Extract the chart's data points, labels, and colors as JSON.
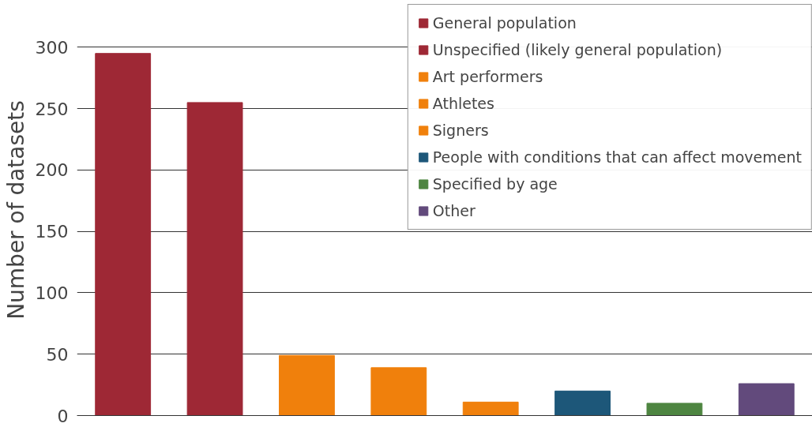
{
  "chart_data": {
    "type": "bar",
    "ylabel": "Number of datasets",
    "categories": [
      null,
      null,
      null,
      null,
      null,
      null,
      null,
      null
    ],
    "series": [
      {
        "name": "General population",
        "color": "#9e2835",
        "values": [
          295,
          null,
          null,
          null,
          null,
          null,
          null,
          null
        ]
      },
      {
        "name": "Unspecified (likely general population)",
        "color": "#9e2835",
        "values": [
          null,
          255,
          null,
          null,
          null,
          null,
          null,
          null
        ]
      },
      {
        "name": "Art performers",
        "color": "#f0800c",
        "values": [
          null,
          null,
          49,
          null,
          null,
          null,
          null,
          null
        ]
      },
      {
        "name": "Athletes",
        "color": "#f0800c",
        "values": [
          null,
          null,
          null,
          39,
          null,
          null,
          null,
          null
        ]
      },
      {
        "name": "Signers",
        "color": "#f0800c",
        "values": [
          null,
          null,
          null,
          null,
          11,
          null,
          null,
          null
        ]
      },
      {
        "name": "People with conditions that can affect movement",
        "color": "#1d5779",
        "values": [
          null,
          null,
          null,
          null,
          null,
          20,
          null,
          null
        ]
      },
      {
        "name": "Specified by age",
        "color": "#4e8541",
        "values": [
          null,
          null,
          null,
          null,
          null,
          null,
          10,
          null
        ]
      },
      {
        "name": "Other",
        "color": "#624a7c",
        "values": [
          null,
          null,
          null,
          null,
          null,
          null,
          null,
          26
        ]
      }
    ],
    "ylim": [
      0,
      335
    ],
    "yticks": [
      0,
      50,
      100,
      150,
      200,
      250,
      300
    ],
    "grid": "y",
    "legend": "top right",
    "tick_labels": "y"
  }
}
